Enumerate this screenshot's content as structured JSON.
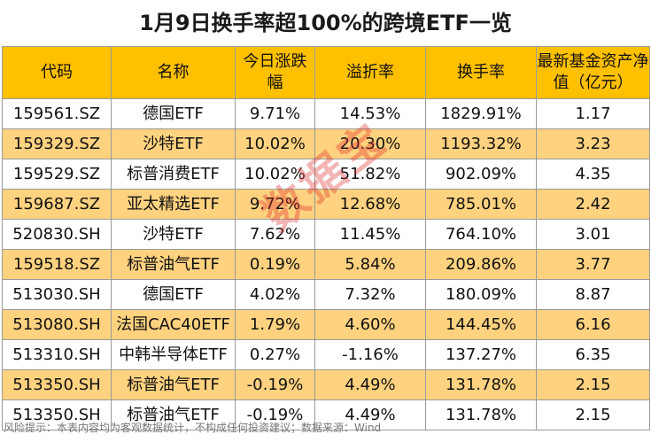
{
  "title": "1月9日换手率超100%的跨境ETF一览",
  "headers": [
    "代码",
    "名称",
    "今日涨跌幅",
    "溢折率",
    "换手率",
    "最新基金资产净值（亿元）"
  ],
  "rows": [
    [
      "159561.SZ",
      "德国ETF",
      "9.71%",
      "14.53%",
      "1829.91%",
      "1.17"
    ],
    [
      "159329.SZ",
      "沙特ETF",
      "10.02%",
      "20.30%",
      "1193.32%",
      "3.23"
    ],
    [
      "159529.SZ",
      "标普消费ETF",
      "10.02%",
      "51.82%",
      "902.09%",
      "4.35"
    ],
    [
      "159687.SZ",
      "亚太精选ETF",
      "9.72%",
      "12.68%",
      "785.01%",
      "2.42"
    ],
    [
      "520830.SH",
      "沙特ETF",
      "7.62%",
      "11.45%",
      "764.10%",
      "3.01"
    ],
    [
      "159518.SZ",
      "标普油气ETF",
      "0.19%",
      "5.84%",
      "209.86%",
      "3.77"
    ],
    [
      "513030.SH",
      "德国ETF",
      "4.02%",
      "7.32%",
      "180.09%",
      "8.87"
    ],
    [
      "513080.SH",
      "法国CAC40ETF",
      "1.79%",
      "4.60%",
      "144.45%",
      "6.16"
    ],
    [
      "513310.SH",
      "中韩半导体ETF",
      "0.27%",
      "-1.16%",
      "137.27%",
      "6.35"
    ],
    [
      "513350.SH",
      "标普油气ETF",
      "-0.19%",
      "4.49%",
      "131.78%",
      "2.15"
    ],
    [
      "513350.SH",
      "标普油气ETF",
      "-0.19%",
      "4.49%",
      "131.78%",
      "2.15"
    ]
  ],
  "watermark": "数据宝",
  "footer": "风险提示：本表内容均为客观数据统计，不构成任何投资建议；数据来源：Wind",
  "colors": {
    "header_bg": "#ffc000",
    "stripe_bg": "#ffd27f",
    "watermark": "#dc2828"
  }
}
